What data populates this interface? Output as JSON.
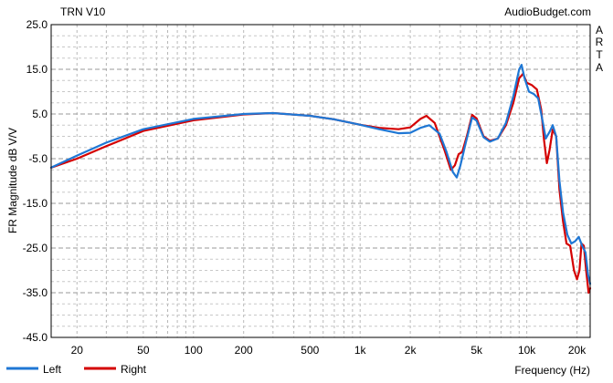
{
  "chart_data": {
    "type": "line",
    "title": "TRN V10",
    "source": "AudioBudget.com",
    "side_label": [
      "A",
      "R",
      "T",
      "A"
    ],
    "ylabel": "FR Magnitude dB V/V",
    "xlabel": "Frequency (Hz)",
    "x_scale": "log",
    "xlim": [
      14,
      24000
    ],
    "ylim": [
      -45,
      25
    ],
    "y_ticks": [
      25.0,
      15.0,
      5.0,
      -5.0,
      -15.0,
      -25.0,
      -35.0,
      -45.0
    ],
    "y_tick_labels": [
      "25.0",
      "15.0",
      "5.0",
      "-5.0",
      "-15.0",
      "-25.0",
      "-35.0",
      "-45.0"
    ],
    "x_ticks": [
      20,
      50,
      100,
      200,
      500,
      1000,
      2000,
      5000,
      10000,
      20000
    ],
    "x_tick_labels": [
      "20",
      "50",
      "100",
      "200",
      "500",
      "1k",
      "2k",
      "5k",
      "10k",
      "20k"
    ],
    "grid": true,
    "legend_position": "bottom-left",
    "series": [
      {
        "name": "Left",
        "color": "#1f77d4",
        "points": [
          [
            14,
            -7
          ],
          [
            20,
            -4.3
          ],
          [
            30,
            -1.4
          ],
          [
            50,
            1.6
          ],
          [
            100,
            3.9
          ],
          [
            200,
            5.0
          ],
          [
            300,
            5.2
          ],
          [
            500,
            4.6
          ],
          [
            700,
            3.8
          ],
          [
            1000,
            2.6
          ],
          [
            1300,
            1.6
          ],
          [
            1700,
            0.7
          ],
          [
            2000,
            0.8
          ],
          [
            2300,
            1.9
          ],
          [
            2600,
            2.5
          ],
          [
            3000,
            0.6
          ],
          [
            3300,
            -3.5
          ],
          [
            3600,
            -8.0
          ],
          [
            3800,
            -9.2
          ],
          [
            4000,
            -6.5
          ],
          [
            4300,
            -1.5
          ],
          [
            4700,
            4.2
          ],
          [
            5000,
            3.5
          ],
          [
            5500,
            -0.2
          ],
          [
            6000,
            -1.2
          ],
          [
            6700,
            -0.5
          ],
          [
            7500,
            3.0
          ],
          [
            8300,
            9.0
          ],
          [
            9000,
            15.0
          ],
          [
            9300,
            16.0
          ],
          [
            9700,
            13.0
          ],
          [
            10300,
            10.0
          ],
          [
            11000,
            9.5
          ],
          [
            11700,
            8.5
          ],
          [
            12500,
            3.0
          ],
          [
            13000,
            -0.5
          ],
          [
            13700,
            1.0
          ],
          [
            14300,
            2.5
          ],
          [
            15000,
            0.0
          ],
          [
            15700,
            -10.0
          ],
          [
            16500,
            -17.0
          ],
          [
            17500,
            -22.0
          ],
          [
            18500,
            -24.0
          ],
          [
            19500,
            -23.5
          ],
          [
            20500,
            -22.5
          ],
          [
            21500,
            -24.5
          ],
          [
            22500,
            -26.0
          ],
          [
            23300,
            -31.0
          ],
          [
            24000,
            -33.0
          ]
        ]
      },
      {
        "name": "Right",
        "color": "#d40000",
        "points": [
          [
            14,
            -7
          ],
          [
            20,
            -5.0
          ],
          [
            30,
            -2.2
          ],
          [
            50,
            1.2
          ],
          [
            100,
            3.6
          ],
          [
            200,
            4.9
          ],
          [
            300,
            5.2
          ],
          [
            500,
            4.6
          ],
          [
            700,
            3.8
          ],
          [
            1000,
            2.6
          ],
          [
            1300,
            1.9
          ],
          [
            1700,
            1.6
          ],
          [
            2000,
            2.0
          ],
          [
            2300,
            3.9
          ],
          [
            2500,
            4.6
          ],
          [
            2800,
            3.0
          ],
          [
            3200,
            -3.0
          ],
          [
            3500,
            -7.5
          ],
          [
            3700,
            -6.5
          ],
          [
            3900,
            -4.0
          ],
          [
            4100,
            -3.5
          ],
          [
            4400,
            0.5
          ],
          [
            4700,
            4.8
          ],
          [
            5000,
            4.0
          ],
          [
            5500,
            0.0
          ],
          [
            6000,
            -1.0
          ],
          [
            6700,
            -0.5
          ],
          [
            7500,
            2.5
          ],
          [
            8300,
            7.5
          ],
          [
            9000,
            13.0
          ],
          [
            9500,
            14.0
          ],
          [
            10000,
            12.0
          ],
          [
            10700,
            11.5
          ],
          [
            11500,
            10.5
          ],
          [
            12200,
            6.0
          ],
          [
            12700,
            -1.0
          ],
          [
            13200,
            -6.0
          ],
          [
            13700,
            -3.0
          ],
          [
            14300,
            1.5
          ],
          [
            15000,
            0.0
          ],
          [
            15700,
            -12.0
          ],
          [
            16500,
            -19.0
          ],
          [
            17300,
            -24.0
          ],
          [
            18200,
            -24.5
          ],
          [
            19200,
            -30.0
          ],
          [
            20000,
            -32.0
          ],
          [
            20700,
            -30.0
          ],
          [
            21300,
            -24.0
          ],
          [
            22000,
            -24.5
          ],
          [
            22700,
            -30.0
          ],
          [
            23500,
            -35.0
          ],
          [
            24000,
            -34.0
          ]
        ]
      }
    ]
  }
}
